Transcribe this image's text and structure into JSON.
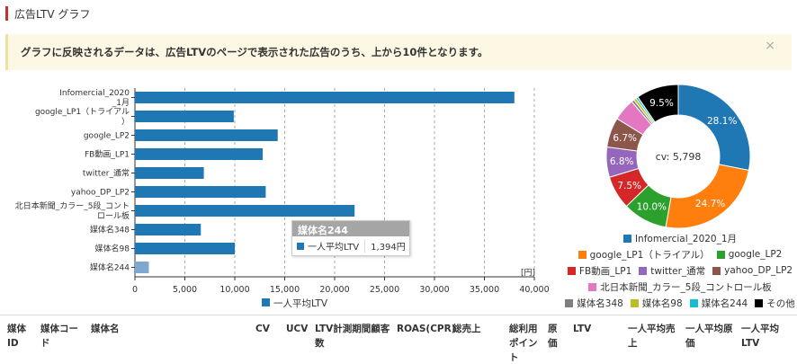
{
  "section_title": "広告LTV グラフ",
  "notice": {
    "message": "グラフに反映されるデータは、広告LTVのページで表示された広告のうち、上から10件となります。",
    "close": "×"
  },
  "bar_legend": "一人平均LTV",
  "tooltip": {
    "title": "媒体名244",
    "label": "一人平均LTV",
    "value": "1,394円"
  },
  "donut_center": "cv: 5,798",
  "colors": {
    "bar": "#1f77b4",
    "bar_highlight": "#7fa8cf",
    "accent": "#c9302c"
  },
  "chart_data": [
    {
      "type": "bar",
      "orientation": "horizontal",
      "categories": [
        "Infomercial_2020_1月",
        "google_LP1（トライアル）",
        "google_LP2",
        "FB動画_LP1",
        "twitter_通常",
        "yahoo_DP_LP2",
        "北日本新聞_カラー_5段_コントロール板",
        "媒体名348",
        "媒体名98",
        "媒体名244"
      ],
      "category_lines": [
        [
          "Infomercial_2020",
          "_1月"
        ],
        [
          "google_LP1（トライアル",
          "）"
        ],
        [
          "google_LP2"
        ],
        [
          "FB動画_LP1"
        ],
        [
          "twitter_通常"
        ],
        [
          "yahoo_DP_LP2"
        ],
        [
          "北日本新聞_カラー_5段_コント",
          "ロール板"
        ],
        [
          "媒体名348"
        ],
        [
          "媒体名98"
        ],
        [
          "媒体名244"
        ]
      ],
      "series": [
        {
          "name": "一人平均LTV",
          "values": [
            38000,
            9900,
            14300,
            12800,
            6900,
            13100,
            22000,
            6600,
            10000,
            1394
          ]
        }
      ],
      "x_ticks": [
        "0",
        "5,000",
        "10,000",
        "15,000",
        "20,000",
        "25,000",
        "30,000",
        "35,000",
        "40,000"
      ],
      "xlim": [
        0,
        40000
      ],
      "unit_label": "[円]",
      "highlight_index": 9,
      "grid": true
    },
    {
      "type": "pie",
      "donut": true,
      "labels": [
        "Infomercial_2020_1月",
        "google_LP1（トライアル）",
        "google_LP2",
        "FB動画_LP1",
        "twitter_通常",
        "yahoo_DP_LP2",
        "北日本新聞_カラー_5段_コントロール板",
        "媒体名348",
        "媒体名98",
        "媒体名244",
        "その他"
      ],
      "values": [
        28.1,
        24.7,
        10.0,
        7.5,
        6.8,
        6.7,
        5.0,
        0.6,
        0.6,
        0.5,
        9.5
      ],
      "value_labels": [
        "28.1%",
        "24.7%",
        "10.0%",
        "7.5%",
        "6.8%",
        "6.7%",
        "",
        "",
        "",
        "",
        "9.5%"
      ],
      "colors": [
        "#1f77b4",
        "#ff7f0e",
        "#2ca02c",
        "#d62728",
        "#9467bd",
        "#8c564b",
        "#e377c2",
        "#7f7f7f",
        "#bcbd22",
        "#17becf",
        "#000000"
      ],
      "legend_placement": "bottom"
    }
  ],
  "table": {
    "headers": [
      {
        "lines": [
          "媒体",
          "ID"
        ]
      },
      {
        "lines": [
          "媒体コー",
          "ド"
        ]
      },
      {
        "lines": [
          "媒体名"
        ]
      },
      {
        "lines": [
          "CV"
        ]
      },
      {
        "lines": [
          "UCV"
        ]
      },
      {
        "lines": [
          "LTV計測期間顧客",
          "数"
        ]
      },
      {
        "lines": [
          "ROAS(CPR)"
        ]
      },
      {
        "lines": [
          "総売上"
        ]
      },
      {
        "lines": [
          "総利用",
          "ポイン",
          "ト"
        ]
      },
      {
        "lines": [
          "原",
          "価"
        ]
      },
      {
        "lines": [
          "LTV"
        ]
      },
      {
        "lines": [
          "一人平均売",
          "上"
        ]
      },
      {
        "lines": [
          "一人平均原",
          "価"
        ]
      },
      {
        "lines": [
          "一人平均",
          "LTV"
        ]
      }
    ]
  }
}
